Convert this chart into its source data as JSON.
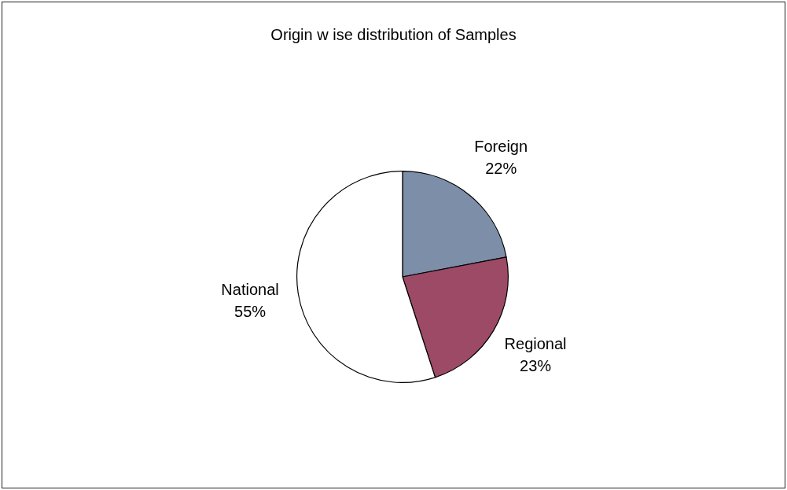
{
  "chart_data": {
    "type": "pie",
    "title": "Origin w ise distribution of Samples",
    "categories": [
      "Foreign",
      "Regional",
      "National"
    ],
    "values": [
      22,
      23,
      55
    ],
    "colors": [
      "#7d8ea8",
      "#9c4a66",
      "#ffffff"
    ],
    "value_labels": [
      "22%",
      "23%",
      "55%"
    ]
  }
}
